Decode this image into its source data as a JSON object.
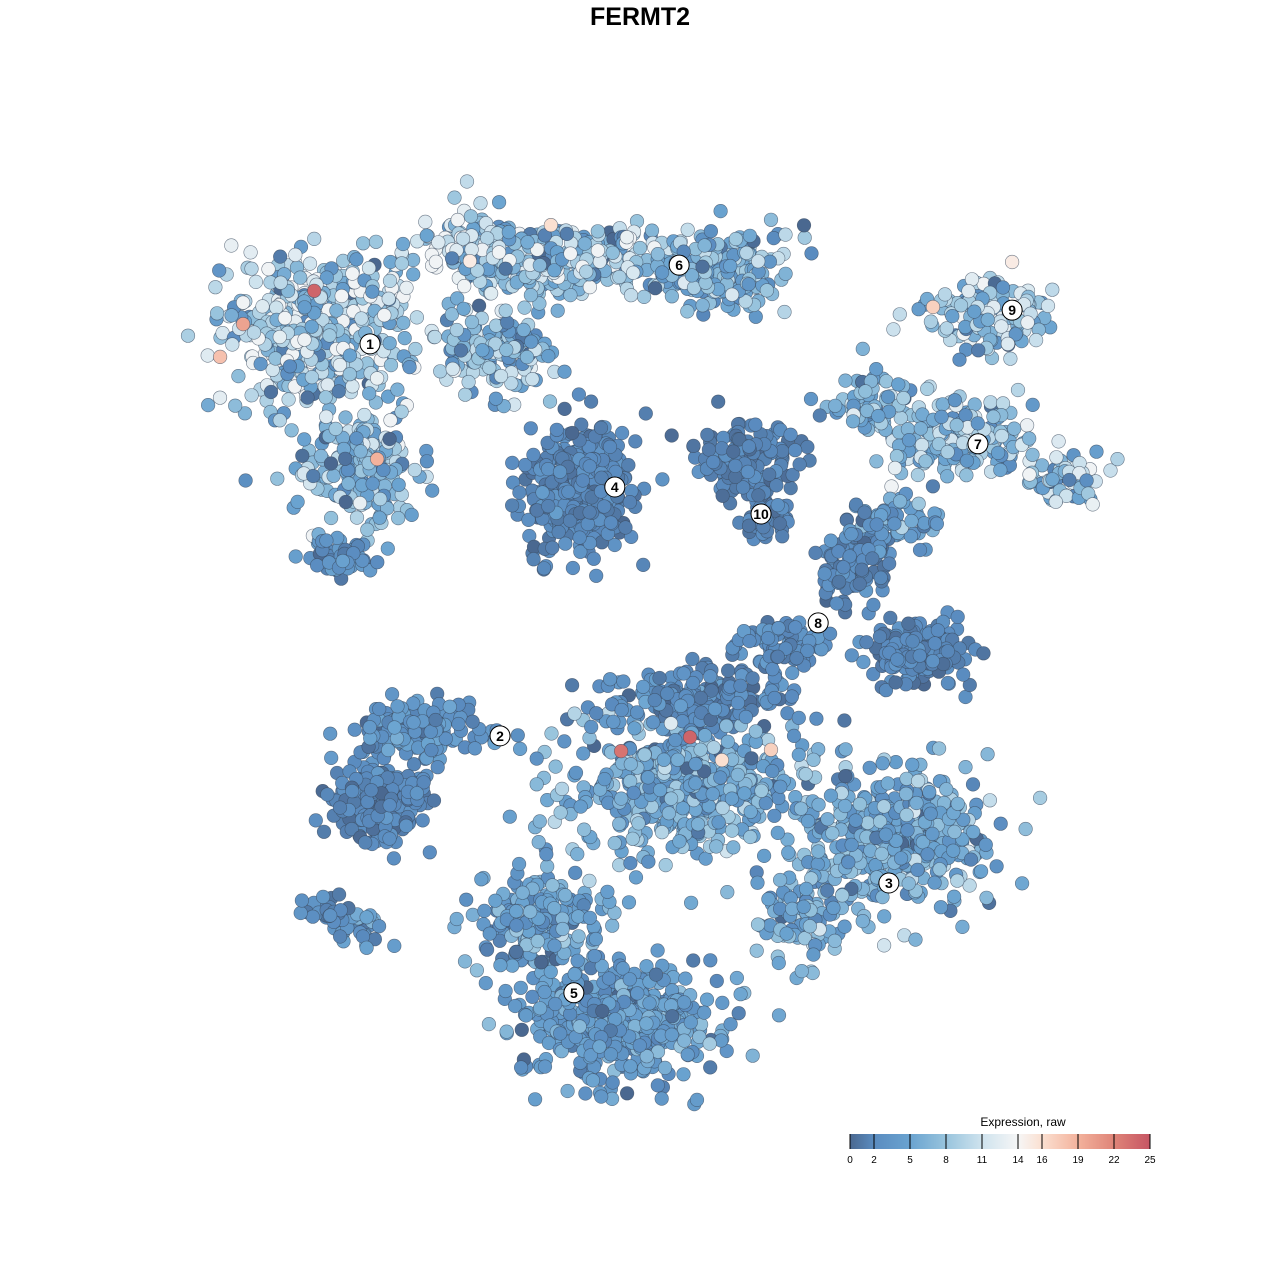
{
  "chart_data": {
    "type": "scatter",
    "title": "FERMT2",
    "xlabel": "",
    "ylabel": "",
    "axes_visible": false,
    "grid": false,
    "xlim": [
      -10,
      11
    ],
    "ylim": [
      -10,
      10.5
    ],
    "color_scale": {
      "title": "Expression, raw",
      "min": 0,
      "max": 25,
      "ticks": [
        0,
        2,
        5,
        8,
        11,
        14,
        16,
        19,
        22,
        25
      ],
      "stops": [
        {
          "value": 0,
          "color": "#4a6890"
        },
        {
          "value": 2,
          "color": "#5a8cc0"
        },
        {
          "value": 5,
          "color": "#6aa3d0"
        },
        {
          "value": 8,
          "color": "#98c4dd"
        },
        {
          "value": 11,
          "color": "#cfe3ee"
        },
        {
          "value": 14,
          "color": "#f6f6f6"
        },
        {
          "value": 16,
          "color": "#fbe0d1"
        },
        {
          "value": 19,
          "color": "#f3b29c"
        },
        {
          "value": 22,
          "color": "#df8478"
        },
        {
          "value": 25,
          "color": "#c65563"
        }
      ],
      "legend_position": "bottom-right"
    },
    "clusters": [
      {
        "label": "1",
        "label_pos": [
          -6.0,
          6.58
        ],
        "blobs": [
          {
            "center": [
              -7.11,
              6.89
            ],
            "spread": [
              1.78,
              1.33
            ],
            "n": 500,
            "mean_expr": 9
          },
          {
            "center": [
              -6.22,
              3.78
            ],
            "spread": [
              1.11,
              1.11
            ],
            "n": 200,
            "mean_expr": 7
          },
          {
            "center": [
              -6.67,
              1.89
            ],
            "spread": [
              0.67,
              0.33
            ],
            "n": 50,
            "mean_expr": 3
          }
        ]
      },
      {
        "label": "2",
        "label_pos": [
          -3.11,
          -2.13
        ],
        "blobs": [
          {
            "center": [
              -5.78,
              -3.56
            ],
            "spread": [
              0.89,
              0.67
            ],
            "n": 250,
            "mean_expr": 1.8
          },
          {
            "center": [
              -4.89,
              -2.0
            ],
            "spread": [
              1.11,
              0.56
            ],
            "n": 150,
            "mean_expr": 3
          },
          {
            "center": [
              -6.89,
              -6.0
            ],
            "spread": [
              0.44,
              0.33
            ],
            "n": 30,
            "mean_expr": 2
          },
          {
            "center": [
              -6.22,
              -6.44
            ],
            "spread": [
              0.44,
              0.33
            ],
            "n": 25,
            "mean_expr": 4
          }
        ]
      },
      {
        "label": "3",
        "label_pos": [
          5.53,
          -5.4
        ],
        "blobs": [
          {
            "center": [
              5.78,
              -4.44
            ],
            "spread": [
              1.78,
              1.22
            ],
            "n": 450,
            "mean_expr": 5.5
          },
          {
            "center": [
              3.56,
              -6.22
            ],
            "spread": [
              0.78,
              0.78
            ],
            "n": 100,
            "mean_expr": 6
          },
          {
            "center": [
              0.89,
              -3.33
            ],
            "spread": [
              2.0,
              1.22
            ],
            "n": 500,
            "mean_expr": 5.5
          },
          {
            "center": [
              1.33,
              -1.33
            ],
            "spread": [
              1.78,
              0.56
            ],
            "n": 200,
            "mean_expr": 2.5
          }
        ]
      },
      {
        "label": "4",
        "label_pos": [
          -0.56,
          3.4
        ],
        "blobs": [
          {
            "center": [
              -1.33,
              3.33
            ],
            "spread": [
              1.0,
              1.11
            ],
            "n": 400,
            "mean_expr": 1.8
          }
        ]
      },
      {
        "label": "5",
        "label_pos": [
          -1.47,
          -7.84
        ],
        "blobs": [
          {
            "center": [
              -0.44,
              -8.44
            ],
            "spread": [
              1.78,
              1.0
            ],
            "n": 500,
            "mean_expr": 4
          },
          {
            "center": [
              -2.22,
              -6.22
            ],
            "spread": [
              1.11,
              0.89
            ],
            "n": 200,
            "mean_expr": 4.5
          }
        ]
      },
      {
        "label": "6",
        "label_pos": [
          0.87,
          8.33
        ],
        "blobs": [
          {
            "center": [
              -1.78,
              8.44
            ],
            "spread": [
              2.0,
              0.67
            ],
            "n": 300,
            "mean_expr": 8
          },
          {
            "center": [
              1.78,
              8.22
            ],
            "spread": [
              1.33,
              0.78
            ],
            "n": 200,
            "mean_expr": 6
          },
          {
            "center": [
              -3.56,
              8.67
            ],
            "spread": [
              1.11,
              0.67
            ],
            "n": 150,
            "mean_expr": 9
          },
          {
            "center": [
              -3.11,
              6.44
            ],
            "spread": [
              1.11,
              0.78
            ],
            "n": 150,
            "mean_expr": 7
          }
        ]
      },
      {
        "label": "7",
        "label_pos": [
          7.51,
          4.36
        ],
        "blobs": [
          {
            "center": [
              7.11,
              4.44
            ],
            "spread": [
              1.33,
              0.67
            ],
            "n": 200,
            "mean_expr": 7
          },
          {
            "center": [
              9.56,
              3.56
            ],
            "spread": [
              0.67,
              0.44
            ],
            "n": 60,
            "mean_expr": 8
          },
          {
            "center": [
              5.11,
              5.33
            ],
            "spread": [
              0.67,
              0.67
            ],
            "n": 60,
            "mean_expr": 6
          }
        ]
      },
      {
        "label": "8",
        "label_pos": [
          3.96,
          0.38
        ],
        "blobs": [
          {
            "center": [
              4.67,
              1.78
            ],
            "spread": [
              0.56,
              0.89
            ],
            "n": 100,
            "mean_expr": 2
          },
          {
            "center": [
              6.22,
              -0.22
            ],
            "spread": [
              0.89,
              0.56
            ],
            "n": 200,
            "mean_expr": 1.8
          },
          {
            "center": [
              3.11,
              -0.11
            ],
            "spread": [
              0.89,
              0.44
            ],
            "n": 80,
            "mean_expr": 2.5
          },
          {
            "center": [
              5.78,
              2.67
            ],
            "spread": [
              0.89,
              0.44
            ],
            "n": 60,
            "mean_expr": 4
          }
        ]
      },
      {
        "label": "9",
        "label_pos": [
          8.27,
          7.33
        ],
        "blobs": [
          {
            "center": [
              7.78,
              7.22
            ],
            "spread": [
              1.22,
              0.67
            ],
            "n": 150,
            "mean_expr": 8
          }
        ]
      },
      {
        "label": "10",
        "label_pos": [
          2.69,
          2.8
        ],
        "blobs": [
          {
            "center": [
              2.33,
              4.0
            ],
            "spread": [
              1.0,
              0.67
            ],
            "n": 150,
            "mean_expr": 1.5
          },
          {
            "center": [
              2.78,
              2.67
            ],
            "spread": [
              0.44,
              0.56
            ],
            "n": 50,
            "mean_expr": 1.5
          }
        ]
      }
    ],
    "high_expression_cells": [
      {
        "x": -7.24,
        "y": 7.76,
        "expr": 24
      },
      {
        "x": -8.82,
        "y": 7.02,
        "expr": 20
      },
      {
        "x": -9.33,
        "y": 6.29,
        "expr": 18
      },
      {
        "x": -5.84,
        "y": 4.02,
        "expr": 19
      },
      {
        "x": -0.42,
        "y": -2.47,
        "expr": 23
      },
      {
        "x": 1.11,
        "y": -2.16,
        "expr": 24
      },
      {
        "x": 2.91,
        "y": -2.44,
        "expr": 17
      },
      {
        "x": 1.82,
        "y": -2.67,
        "expr": 16
      },
      {
        "x": -1.98,
        "y": 9.22,
        "expr": 16
      },
      {
        "x": -3.78,
        "y": 8.42,
        "expr": 15
      },
      {
        "x": 8.27,
        "y": 8.4,
        "expr": 15
      },
      {
        "x": 6.51,
        "y": 7.4,
        "expr": 17
      }
    ]
  }
}
